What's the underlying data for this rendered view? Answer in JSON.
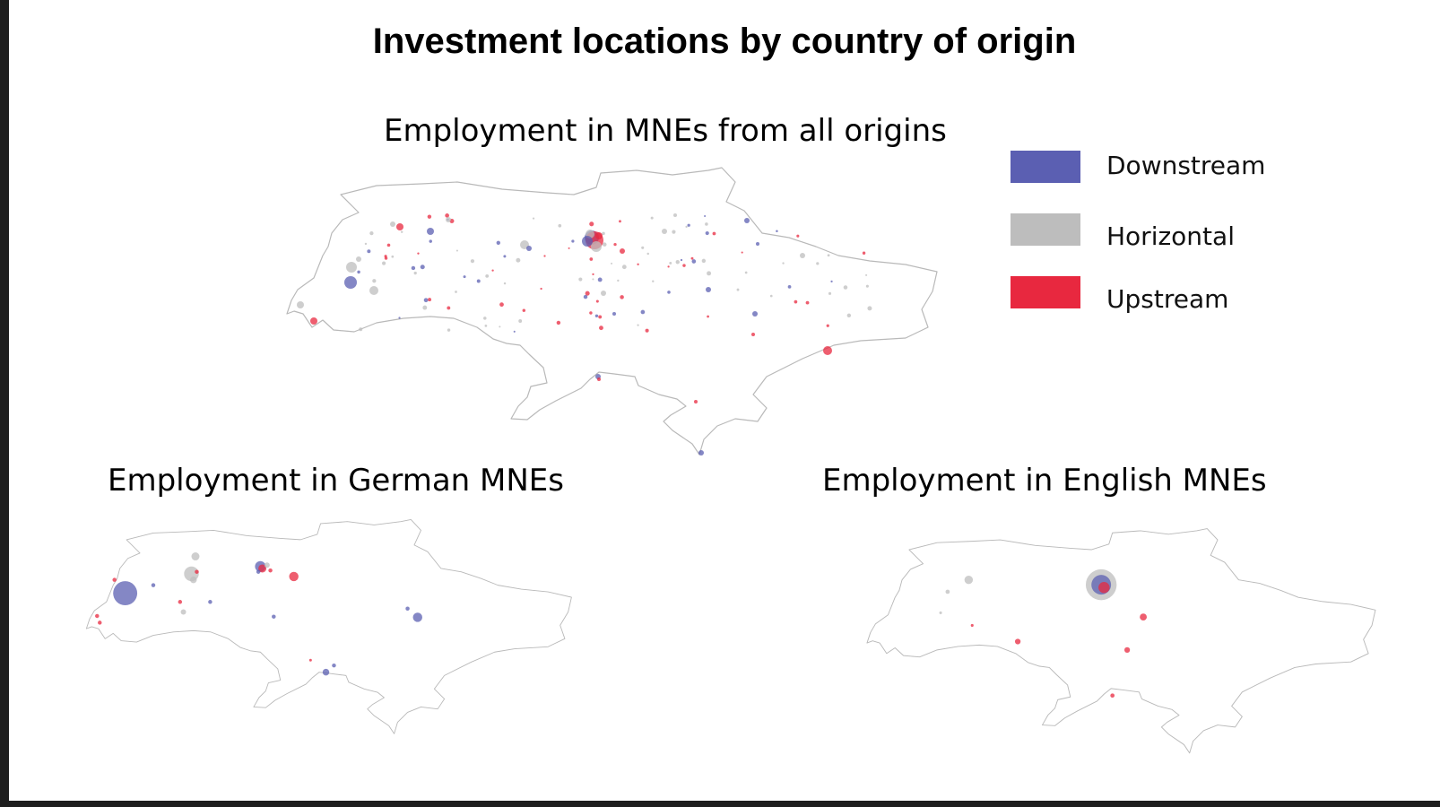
{
  "title": "Investment locations by country of origin",
  "maps": {
    "all": {
      "label": "Employment in MNEs from all origins"
    },
    "german": {
      "label": "Employment in German MNEs"
    },
    "english": {
      "label": "Employment in English MNEs"
    }
  },
  "legend": [
    {
      "label": "Downstream",
      "color": "#5b5fb2"
    },
    {
      "label": "Horizontal",
      "color": "#bdbdbd"
    },
    {
      "label": "Upstream",
      "color": "#e8283f"
    }
  ]
}
